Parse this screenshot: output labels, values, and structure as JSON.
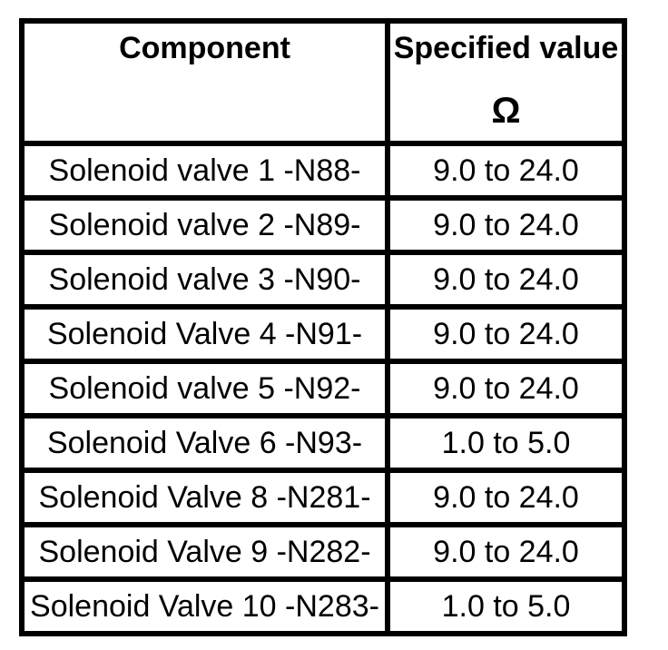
{
  "colors": {
    "border": "#000000",
    "text": "#000000",
    "background": "#ffffff"
  },
  "table": {
    "header": {
      "component": "Component",
      "value": "Specified value",
      "value_unit": "Ω"
    },
    "rows": [
      {
        "component": "Solenoid valve 1 -N88-",
        "value": "9.0 to 24.0"
      },
      {
        "component": "Solenoid valve 2 -N89-",
        "value": "9.0 to 24.0"
      },
      {
        "component": "Solenoid valve 3 -N90-",
        "value": "9.0 to 24.0"
      },
      {
        "component": "Solenoid Valve 4 -N91-",
        "value": "9.0 to 24.0"
      },
      {
        "component": "Solenoid valve 5 -N92-",
        "value": "9.0 to 24.0"
      },
      {
        "component": "Solenoid Valve 6 -N93-",
        "value": "1.0 to 5.0"
      },
      {
        "component": "Solenoid Valve 8 -N281-",
        "value": "9.0 to 24.0"
      },
      {
        "component": "Solenoid Valve 9 -N282-",
        "value": "9.0 to 24.0"
      },
      {
        "component": "Solenoid Valve 10 -N283-",
        "value": "1.0 to 5.0"
      }
    ]
  }
}
